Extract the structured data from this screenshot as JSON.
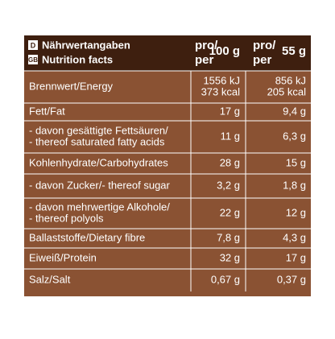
{
  "header": {
    "badges": [
      "D",
      "GB"
    ],
    "titles": [
      "Nährwertangaben",
      "Nutrition facts"
    ],
    "columns": [
      {
        "pro": "pro/",
        "per": "per",
        "amount": "100 g"
      },
      {
        "pro": "pro/",
        "per": "per",
        "amount": "55 g"
      }
    ]
  },
  "table": {
    "rows": [
      {
        "label": [
          "Brennwert/Energy"
        ],
        "v100": [
          "1556 kJ",
          "373 kcal"
        ],
        "v55": [
          "856 kJ",
          "205 kcal"
        ]
      },
      {
        "label": [
          "Fett/Fat"
        ],
        "v100": [
          "17 g"
        ],
        "v55": [
          "9,4 g"
        ]
      },
      {
        "label": [
          "- davon gesättigte Fettsäuren/",
          "- thereof saturated fatty acids"
        ],
        "v100": [
          "11 g"
        ],
        "v55": [
          "6,3 g"
        ]
      },
      {
        "label": [
          "Kohlenhydrate/Carbohydrates"
        ],
        "v100": [
          "28 g"
        ],
        "v55": [
          "15 g"
        ]
      },
      {
        "label": [
          "- davon Zucker/- thereof sugar"
        ],
        "v100": [
          "3,2 g"
        ],
        "v55": [
          "1,8 g"
        ]
      },
      {
        "label": [
          "- davon mehrwertige Alkohole/",
          "- thereof polyols"
        ],
        "v100": [
          "22 g"
        ],
        "v55": [
          "12 g"
        ]
      },
      {
        "label": [
          "Ballaststoffe/Dietary fibre"
        ],
        "v100": [
          "7,8 g"
        ],
        "v55": [
          "4,3 g"
        ]
      },
      {
        "label": [
          "Eiweiß/Protein"
        ],
        "v100": [
          "32 g"
        ],
        "v55": [
          "17 g"
        ]
      },
      {
        "label": [
          "Salz/Salt"
        ],
        "v100": [
          "0,67 g"
        ],
        "v55": [
          "0,37 g"
        ]
      }
    ]
  }
}
